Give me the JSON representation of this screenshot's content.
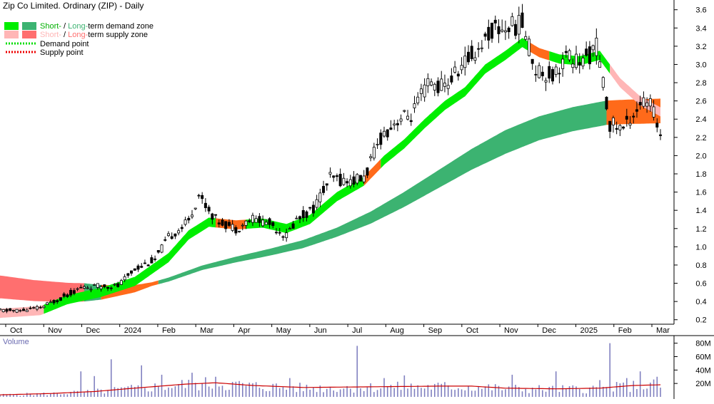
{
  "chart_data": {
    "type": "candlestick",
    "title": "Zip Co Limited. Ordinary (ZIP) - Daily",
    "legend": {
      "demand_zone": {
        "short": "Short-",
        "sep": " / ",
        "long": "Long-",
        "rest": "term demand zone"
      },
      "supply_zone": {
        "short": "Short-",
        "sep": " / ",
        "long": "Long-",
        "rest": "term supply zone"
      },
      "demand_point": "Demand point",
      "supply_point": "Supply point"
    },
    "colors": {
      "short_demand": "#00ee00",
      "long_demand": "#3cb371",
      "short_supply": "#ffb6b6",
      "long_supply": "#ff6f6f",
      "hold_zone": "#ff6a1a",
      "volume_bar": "#8080c0",
      "volume_ma": "#cc0000",
      "candle": "#000000"
    },
    "x_tick_labels": [
      "Oct",
      "Nov",
      "Dec",
      "2024",
      "Feb",
      "Mar",
      "Apr",
      "May",
      "Jun",
      "Jul",
      "Aug",
      "Sep",
      "Oct",
      "Nov",
      "Dec",
      "2025",
      "Feb",
      "Mar"
    ],
    "y_tick_labels": [
      "3.6",
      "3.4",
      "3.2",
      "3.0",
      "2.8",
      "2.6",
      "2.4",
      "2.2",
      "2.0",
      "1.8",
      "1.6",
      "1.4",
      "1.2",
      "1.0",
      "0.8",
      "0.6",
      "0.4",
      "0.2"
    ],
    "y_ticks": [
      3.6,
      3.4,
      3.2,
      3.0,
      2.8,
      2.6,
      2.4,
      2.2,
      2.0,
      1.8,
      1.6,
      1.4,
      1.2,
      1.0,
      0.8,
      0.6,
      0.4,
      0.2
    ],
    "ylim": [
      0.19,
      3.66
    ],
    "price_path": [
      [
        0,
        0.3
      ],
      [
        6,
        0.3
      ],
      [
        12,
        0.33
      ],
      [
        17,
        0.42
      ],
      [
        24,
        0.55
      ],
      [
        30,
        0.57
      ],
      [
        35,
        0.57
      ],
      [
        40,
        0.76
      ],
      [
        46,
        0.86
      ],
      [
        50,
        1.1
      ],
      [
        56,
        1.28
      ],
      [
        59,
        1.57
      ],
      [
        64,
        1.3
      ],
      [
        70,
        1.2
      ],
      [
        75,
        1.31
      ],
      [
        80,
        1.26
      ],
      [
        85,
        1.12
      ],
      [
        88,
        1.3
      ],
      [
        93,
        1.42
      ],
      [
        98,
        1.75
      ],
      [
        103,
        1.72
      ],
      [
        108,
        1.75
      ],
      [
        113,
        2.2
      ],
      [
        118,
        2.4
      ],
      [
        122,
        2.44
      ],
      [
        127,
        2.78
      ],
      [
        132,
        2.76
      ],
      [
        137,
        2.98
      ],
      [
        142,
        3.18
      ],
      [
        146,
        3.38
      ],
      [
        150,
        3.4
      ],
      [
        155,
        3.45
      ],
      [
        159,
        2.95
      ],
      [
        164,
        2.88
      ],
      [
        168,
        3.08
      ],
      [
        173,
        3.02
      ],
      [
        177,
        3.2
      ],
      [
        181,
        2.35
      ],
      [
        185,
        2.3
      ],
      [
        190,
        2.58
      ],
      [
        193,
        2.56
      ],
      [
        196,
        2.25
      ]
    ],
    "short_ma": [
      [
        0,
        0.27
      ],
      [
        12,
        0.3
      ],
      [
        20,
        0.42
      ],
      [
        30,
        0.5
      ],
      [
        40,
        0.62
      ],
      [
        50,
        0.88
      ],
      [
        56,
        1.13
      ],
      [
        62,
        1.27
      ],
      [
        70,
        1.24
      ],
      [
        78,
        1.26
      ],
      [
        85,
        1.2
      ],
      [
        92,
        1.3
      ],
      [
        100,
        1.55
      ],
      [
        108,
        1.72
      ],
      [
        114,
        1.95
      ],
      [
        120,
        2.13
      ],
      [
        126,
        2.35
      ],
      [
        132,
        2.55
      ],
      [
        138,
        2.7
      ],
      [
        144,
        2.95
      ],
      [
        150,
        3.1
      ],
      [
        155,
        3.24
      ],
      [
        160,
        3.13
      ],
      [
        166,
        3.06
      ],
      [
        172,
        3.04
      ],
      [
        178,
        3.1
      ],
      [
        184,
        2.8
      ],
      [
        190,
        2.6
      ],
      [
        196,
        2.48
      ]
    ],
    "short_width": 0.05,
    "long_ma": [
      [
        0,
        0.56
      ],
      [
        10,
        0.52
      ],
      [
        20,
        0.5
      ],
      [
        30,
        0.5
      ],
      [
        40,
        0.54
      ],
      [
        50,
        0.64
      ],
      [
        60,
        0.77
      ],
      [
        70,
        0.86
      ],
      [
        80,
        0.94
      ],
      [
        90,
        1.03
      ],
      [
        100,
        1.16
      ],
      [
        110,
        1.32
      ],
      [
        120,
        1.52
      ],
      [
        130,
        1.74
      ],
      [
        140,
        1.96
      ],
      [
        150,
        2.15
      ],
      [
        160,
        2.3
      ],
      [
        170,
        2.4
      ],
      [
        180,
        2.47
      ],
      [
        186,
        2.48
      ],
      [
        196,
        2.49
      ]
    ],
    "long_width": [
      [
        0,
        0.25
      ],
      [
        25,
        0.2
      ],
      [
        45,
        0.04
      ],
      [
        60,
        0.05
      ],
      [
        100,
        0.1
      ],
      [
        150,
        0.26
      ],
      [
        196,
        0.27
      ]
    ],
    "long_supply_until": 24,
    "long_hold": [
      [
        30,
        46
      ],
      [
        180,
        196
      ]
    ],
    "short_supply": [
      [
        0,
        12
      ],
      [
        181,
        196
      ]
    ],
    "short_hold": [
      [
        64,
        72
      ],
      [
        108,
        112
      ],
      [
        157,
        162
      ]
    ],
    "volume": {
      "label": "Volume",
      "y_tick_labels": [
        "80M",
        "60M",
        "40M",
        "20M"
      ],
      "y_ticks": [
        80,
        60,
        40,
        20
      ],
      "ylim": [
        0,
        86
      ],
      "spikes": [
        [
          24,
          38
        ],
        [
          28,
          31
        ],
        [
          33,
          56
        ],
        [
          42,
          47
        ],
        [
          48,
          33
        ],
        [
          57,
          36
        ],
        [
          64,
          30
        ],
        [
          86,
          28
        ],
        [
          106,
          76
        ],
        [
          114,
          28
        ],
        [
          120,
          32
        ],
        [
          152,
          33
        ],
        [
          165,
          38
        ],
        [
          178,
          25
        ],
        [
          181,
          80
        ],
        [
          186,
          28
        ],
        [
          190,
          38
        ],
        [
          195,
          30
        ]
      ],
      "ma": [
        [
          0,
          3
        ],
        [
          15,
          5
        ],
        [
          28,
          8
        ],
        [
          40,
          13
        ],
        [
          55,
          19
        ],
        [
          64,
          21
        ],
        [
          75,
          17
        ],
        [
          90,
          14
        ],
        [
          110,
          15
        ],
        [
          130,
          16
        ],
        [
          140,
          16
        ],
        [
          150,
          13
        ],
        [
          165,
          12
        ],
        [
          178,
          13
        ],
        [
          188,
          17
        ],
        [
          196,
          18
        ]
      ]
    }
  }
}
